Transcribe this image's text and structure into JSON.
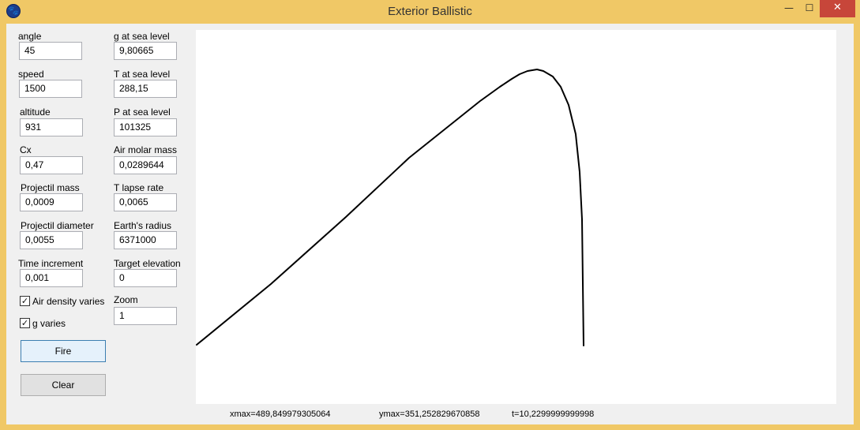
{
  "window": {
    "title": "Exterior Ballistic",
    "controls": {
      "minimize": "—",
      "maximize": "☐",
      "close": "✕"
    }
  },
  "params_left": [
    {
      "label": "angle",
      "value": "45"
    },
    {
      "label": "speed",
      "value": "1500"
    },
    {
      "label": "altitude",
      "value": "931"
    },
    {
      "label": "Cx",
      "value": "0,47"
    },
    {
      "label": "Projectil mass",
      "value": "0,0009"
    },
    {
      "label": "Projectil diameter",
      "value": "0,0055"
    },
    {
      "label": "Time increment",
      "value": "0,001"
    }
  ],
  "params_right": [
    {
      "label": "g at sea level",
      "value": "9,80665"
    },
    {
      "label": "T at sea level",
      "value": "288,15"
    },
    {
      "label": "P at sea level",
      "value": "101325"
    },
    {
      "label": "Air molar mass",
      "value": "0,0289644"
    },
    {
      "label": "T lapse rate",
      "value": "0,0065"
    },
    {
      "label": "Earth's radius",
      "value": "6371000"
    },
    {
      "label": "Target elevation",
      "value": "0"
    },
    {
      "label": "Zoom",
      "value": "1"
    }
  ],
  "options": [
    {
      "label": "Air density varies",
      "checked": true
    },
    {
      "label": "g varies",
      "checked": true
    }
  ],
  "buttons": {
    "fire": "Fire",
    "clear": "Clear"
  },
  "status": {
    "xmax": "xmax=489,849979305064",
    "ymax": "ymax=351,252829670858",
    "t": "t=10,2299999999998"
  }
}
